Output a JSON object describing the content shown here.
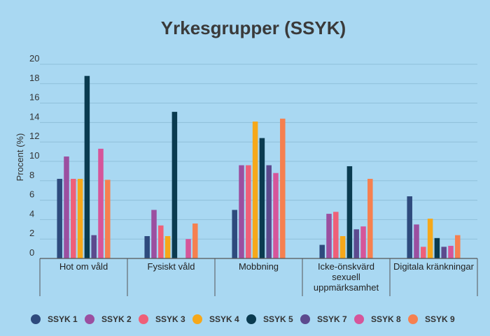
{
  "chart_data": {
    "type": "bar",
    "title": "Yrkesgrupper (SSYK)",
    "xlabel": "",
    "ylabel": "Procent (%)",
    "ylim": [
      0,
      20
    ],
    "yticks": [
      0,
      2,
      4,
      6,
      8,
      10,
      12,
      14,
      16,
      18,
      20
    ],
    "grid": true,
    "legend_position": "bottom",
    "categories": [
      "Hot om våld",
      "Fysiskt våld",
      "Mobbning",
      "Icke-önskvärd sexuell uppmärksamhet",
      "Digitala kränkningar"
    ],
    "category_lines": [
      [
        "Hot om våld"
      ],
      [
        "Fysiskt våld"
      ],
      [
        "Mobbning"
      ],
      [
        "Icke-önskvärd",
        "sexuell",
        "uppmärksamhet"
      ],
      [
        "Digitala kränkningar"
      ]
    ],
    "series": [
      {
        "name": "SSYK 1",
        "color": "#2e4a7d",
        "values": [
          8.2,
          2.3,
          5.0,
          1.4,
          6.4
        ]
      },
      {
        "name": "SSYK 2",
        "color": "#9b4fa0",
        "values": [
          10.5,
          5.0,
          9.6,
          4.6,
          3.5
        ]
      },
      {
        "name": "SSYK 3",
        "color": "#ef5f78",
        "values": [
          8.2,
          3.4,
          9.6,
          4.8,
          1.2
        ]
      },
      {
        "name": "SSYK 4",
        "color": "#f6a81a",
        "values": [
          8.2,
          2.3,
          14.1,
          2.3,
          4.1
        ]
      },
      {
        "name": "SSYK 5",
        "color": "#0a3b50",
        "values": [
          18.8,
          15.1,
          12.4,
          9.5,
          2.1
        ]
      },
      {
        "name": "SSYK 7",
        "color": "#5c4a8e",
        "values": [
          2.4,
          0,
          9.6,
          3.0,
          1.2
        ]
      },
      {
        "name": "SSYK 8",
        "color": "#d6559a",
        "values": [
          11.3,
          2.0,
          8.8,
          3.3,
          1.3
        ]
      },
      {
        "name": "SSYK 9",
        "color": "#f6804f",
        "values": [
          8.1,
          3.6,
          14.4,
          8.2,
          2.4
        ]
      }
    ]
  }
}
